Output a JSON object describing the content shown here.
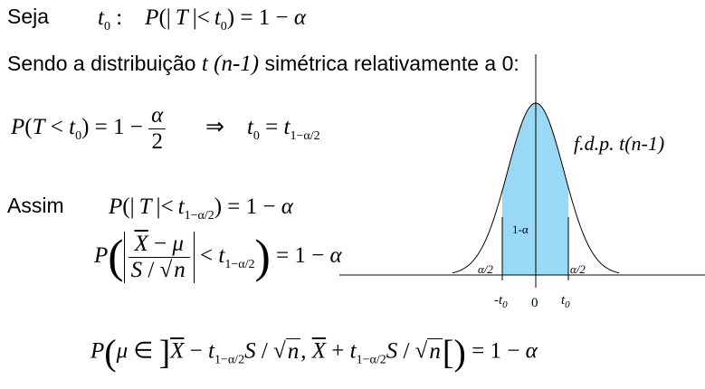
{
  "texts": {
    "seja": "Seja",
    "sendo": "Sendo a distribuição",
    "sendo_rest": "simétrica relativamente a 0:",
    "assim": "Assim"
  },
  "math": {
    "alpha": "α",
    "mu": "μ",
    "one": "1",
    "two": "2",
    "t": "t",
    "T": "T",
    "P": "P",
    "S": "S",
    "n": "n",
    "X": "X",
    "n_minus_1": "(n-1)",
    "sub0": "0",
    "sub_q": "1−α/2",
    "implies": "⇒",
    "in_sym": "∈"
  },
  "figure": {
    "label_fdp": "f.d.p.  t(n-1)",
    "label_center": "1-α",
    "label_left_tail": "α/2",
    "label_right_tail": "α/2",
    "tick_neg": "-t",
    "tick_zero": "0",
    "tick_pos": "t",
    "tick_sub": "0",
    "shade_color": "#99d9f5"
  }
}
